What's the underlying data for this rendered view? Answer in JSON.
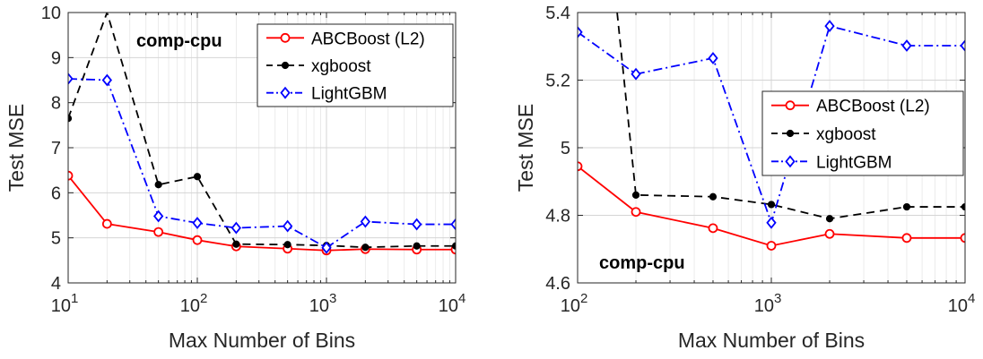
{
  "chart_data": [
    {
      "type": "line",
      "title": "",
      "annotation": "comp-cpu",
      "xlabel": "Max Number of Bins",
      "ylabel": "Test MSE",
      "xscale": "log",
      "xlim": [
        10,
        10000
      ],
      "ylim": [
        4,
        10
      ],
      "x_ticks": [
        {
          "value": 10,
          "base": "10",
          "exp": "1"
        },
        {
          "value": 100,
          "base": "10",
          "exp": "2"
        },
        {
          "value": 1000,
          "base": "10",
          "exp": "3"
        },
        {
          "value": 10000,
          "base": "10",
          "exp": "4"
        }
      ],
      "y_ticks": [
        "4",
        "5",
        "6",
        "7",
        "8",
        "9",
        "10"
      ],
      "grid": true,
      "legend_position": "top-right",
      "series": [
        {
          "name": "ABCBoost (L2)",
          "color": "#ff0000",
          "dash": "solid",
          "marker": "circle",
          "x": [
            10,
            20,
            50,
            100,
            200,
            500,
            1000,
            2000,
            5000,
            10000
          ],
          "y": [
            6.38,
            5.31,
            5.13,
            4.95,
            4.81,
            4.76,
            4.72,
            4.75,
            4.74,
            4.74
          ]
        },
        {
          "name": "xgboost",
          "color": "#000000",
          "dash": "dashed",
          "marker": "dot",
          "x": [
            10,
            20,
            50,
            100,
            200,
            500,
            1000,
            2000,
            5000,
            10000
          ],
          "y": [
            7.65,
            10.0,
            6.18,
            6.36,
            4.86,
            4.85,
            4.83,
            4.79,
            4.82,
            4.82
          ]
        },
        {
          "name": "LightGBM",
          "color": "#0000ff",
          "dash": "dashdot",
          "marker": "diamond",
          "x": [
            10,
            20,
            50,
            100,
            200,
            500,
            1000,
            2000,
            5000,
            10000
          ],
          "y": [
            8.53,
            8.5,
            5.48,
            5.33,
            5.22,
            5.26,
            4.78,
            5.36,
            5.3,
            5.3
          ]
        }
      ]
    },
    {
      "type": "line",
      "title": "",
      "annotation": "comp-cpu",
      "xlabel": "Max Number of Bins",
      "ylabel": "Test MSE",
      "xscale": "log",
      "xlim": [
        100,
        10000
      ],
      "ylim": [
        4.6,
        5.4
      ],
      "x_ticks": [
        {
          "value": 100,
          "base": "10",
          "exp": "2"
        },
        {
          "value": 1000,
          "base": "10",
          "exp": "3"
        },
        {
          "value": 10000,
          "base": "10",
          "exp": "4"
        }
      ],
      "y_ticks": [
        "4.6",
        "4.8",
        "5",
        "5.2",
        "5.4"
      ],
      "grid": true,
      "legend_position": "center-right",
      "series": [
        {
          "name": "ABCBoost (L2)",
          "color": "#ff0000",
          "dash": "solid",
          "marker": "circle",
          "x": [
            100,
            200,
            500,
            1000,
            2000,
            5000,
            10000
          ],
          "y": [
            4.945,
            4.81,
            4.762,
            4.71,
            4.745,
            4.733,
            4.733
          ]
        },
        {
          "name": "xgboost",
          "color": "#000000",
          "dash": "dashed",
          "marker": "dot",
          "x": [
            160,
            200,
            500,
            1000,
            2000,
            5000,
            10000
          ],
          "y": [
            5.4,
            4.86,
            4.855,
            4.832,
            4.79,
            4.825,
            4.825
          ]
        },
        {
          "name": "LightGBM",
          "color": "#0000ff",
          "dash": "dashdot",
          "marker": "diamond",
          "x": [
            100,
            200,
            500,
            1000,
            2000,
            5000,
            10000
          ],
          "y": [
            5.342,
            5.218,
            5.265,
            4.778,
            5.36,
            5.302,
            5.302
          ]
        }
      ]
    }
  ]
}
